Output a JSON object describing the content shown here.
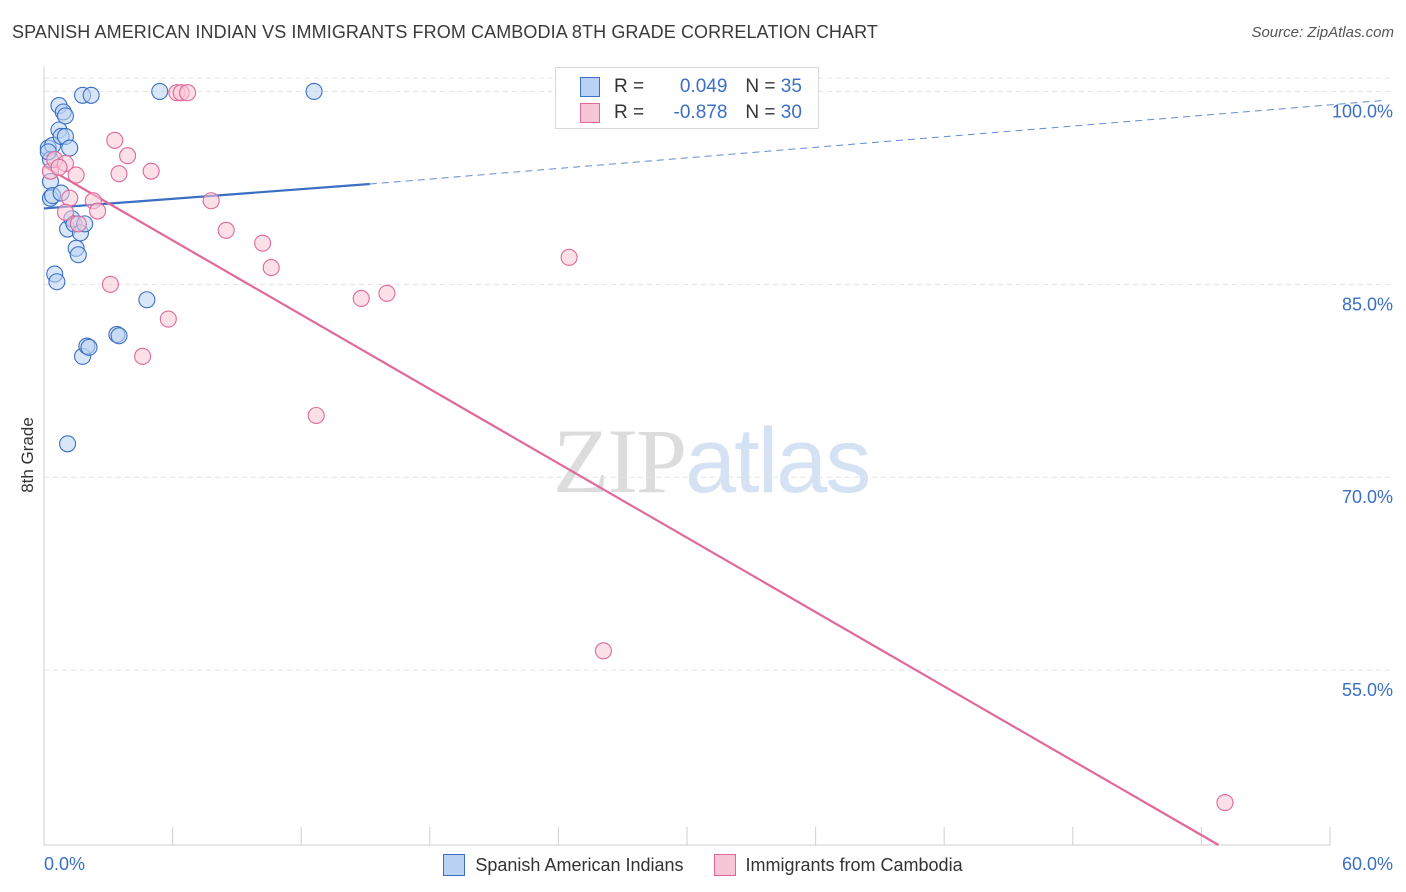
{
  "header": {
    "title": "SPANISH AMERICAN INDIAN VS IMMIGRANTS FROM CAMBODIA 8TH GRADE CORRELATION CHART",
    "source": "Source: ZipAtlas.com"
  },
  "watermark": {
    "zip": "ZIP",
    "atlas": "atlas"
  },
  "legend": {
    "r_label": "R =",
    "n_label": "N =",
    "series": [
      {
        "r": "0.049",
        "n": "35"
      },
      {
        "r": "-0.878",
        "n": "30"
      }
    ]
  },
  "chart_data": {
    "type": "scatter",
    "title": "SPANISH AMERICAN INDIAN VS IMMIGRANTS FROM CAMBODIA 8TH GRADE CORRELATION CHART",
    "xlabel": "",
    "ylabel": "8th Grade",
    "xlim": [
      0,
      60
    ],
    "ylim": [
      41.4,
      101.9
    ],
    "x_tick_labels": [
      "0.0%",
      "60.0%"
    ],
    "y_ticks": [
      {
        "value": 55,
        "label": "55.0%"
      },
      {
        "value": 70,
        "label": "70.0%"
      },
      {
        "value": 85,
        "label": "85.0%"
      },
      {
        "value": 100,
        "label": "100.0%"
      }
    ],
    "grid": true,
    "colors": {
      "blue": "#3a6fc4",
      "blue_fill": "#b9d1f2",
      "pink": "#e0689a",
      "pink_fill": "#f7c6d6",
      "grid": "#e3e3e3"
    },
    "series": [
      {
        "name": "Spanish American Indians",
        "color": "#3a6fc4",
        "x": [
          0.2,
          0.3,
          0.3,
          0.4,
          0.4,
          0.5,
          0.6,
          0.7,
          0.7,
          0.8,
          0.8,
          0.9,
          1.0,
          1.0,
          1.1,
          1.1,
          1.2,
          1.3,
          1.4,
          1.5,
          1.6,
          1.7,
          1.8,
          1.8,
          1.9,
          2.0,
          2.1,
          2.2,
          3.4,
          3.5,
          4.8,
          5.4,
          12.6,
          0.3,
          0.2
        ],
        "y": [
          95.6,
          91.7,
          93.0,
          91.9,
          95.8,
          85.8,
          85.2,
          98.9,
          97.0,
          96.5,
          92.1,
          98.4,
          98.1,
          96.5,
          72.6,
          89.3,
          95.6,
          90.1,
          89.7,
          87.8,
          87.3,
          89.0,
          79.4,
          99.7,
          89.7,
          80.2,
          80.1,
          99.7,
          81.1,
          81.0,
          83.8,
          100.0,
          100.0,
          94.7,
          95.3
        ]
      },
      {
        "name": "Immigrants from Cambodia",
        "color": "#e0689a",
        "x": [
          0.3,
          0.5,
          1.0,
          1.2,
          1.5,
          2.3,
          2.5,
          3.1,
          3.3,
          3.5,
          3.9,
          4.6,
          5.0,
          5.8,
          6.2,
          6.4,
          6.7,
          7.8,
          8.5,
          10.2,
          10.6,
          12.7,
          14.8,
          16.0,
          24.5,
          26.1,
          55.1,
          1.0,
          0.7,
          1.6
        ],
        "y": [
          93.8,
          94.7,
          94.4,
          91.7,
          93.5,
          91.5,
          90.7,
          85.0,
          96.2,
          93.6,
          95.0,
          79.4,
          93.8,
          82.3,
          99.9,
          99.9,
          99.9,
          91.5,
          89.2,
          88.2,
          86.3,
          74.8,
          83.9,
          84.3,
          87.1,
          56.5,
          44.7,
          90.6,
          94.1,
          89.7
        ]
      }
    ],
    "trendlines": [
      {
        "series": "Spanish American Indians",
        "x_start": 0.0,
        "y_start": 90.9,
        "x_solid_end": 15.2,
        "y_solid_end": 92.8,
        "x_end": 62.5,
        "y_end": 99.3
      },
      {
        "series": "Immigrants from Cambodia",
        "x_start": 0.0,
        "y_start": 94.2,
        "x_end": 54.8,
        "y_end": 41.4
      }
    ]
  }
}
